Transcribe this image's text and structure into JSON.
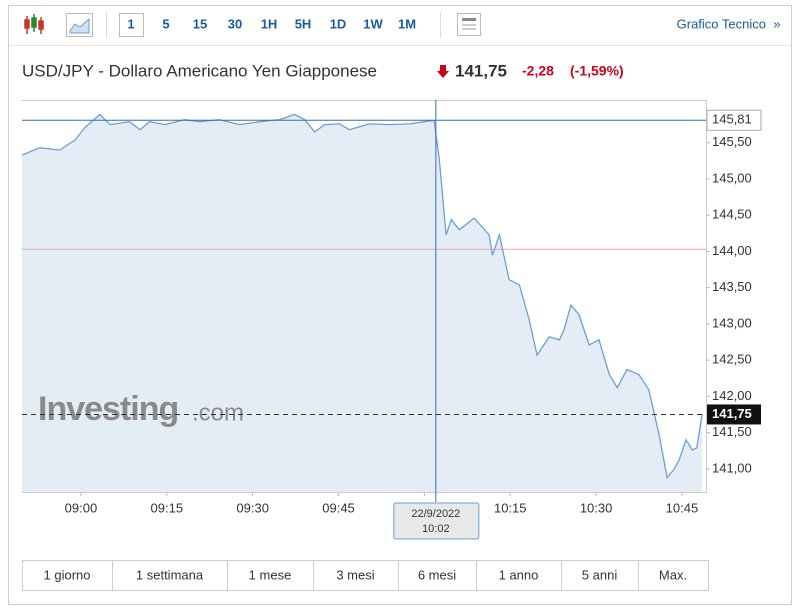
{
  "toolbar": {
    "intervals": [
      "1",
      "5",
      "15",
      "30",
      "1H",
      "5H",
      "1D",
      "1W",
      "1M"
    ],
    "link": "Grafico Tecnico",
    "link_arrow": "»"
  },
  "header": {
    "title": "USD/JPY - Dollaro Americano Yen Giapponese",
    "price": "141,75",
    "change": "-2,28",
    "change_percent": "(-1,59%)"
  },
  "watermark": {
    "brand": "Investing",
    "suffix": ".com"
  },
  "chart_data": {
    "type": "line",
    "series": [
      {
        "name": "USD/JPY",
        "color": "#6d9fd3",
        "x": [
          529.7,
          532.8,
          536.3,
          539.0,
          540.7,
          543.3,
          545.1,
          548.5,
          550.3,
          552.0,
          554.7,
          558.1,
          560.8,
          564.2,
          567.7,
          571.2,
          574.7,
          577.3,
          579.1,
          580.8,
          582.6,
          585.2,
          586.9,
          590.4,
          593.9,
          597.4,
          600.0,
          601.7,
          602.6,
          603.8,
          604.7,
          606.1,
          608.7,
          611.3,
          611.9,
          613.1,
          614.8,
          616.6,
          618.3,
          619.7,
          621.8,
          623.6,
          624.4,
          625.6,
          627.0,
          628.8,
          630.5,
          632.3,
          633.7,
          635.4,
          637.5,
          639.2,
          641.0,
          642.4,
          643.6,
          644.5,
          645.7,
          646.8,
          647.6,
          648.5
        ],
        "values": [
          145.33,
          145.43,
          145.4,
          145.54,
          145.71,
          145.89,
          145.75,
          145.79,
          145.68,
          145.79,
          145.75,
          145.82,
          145.79,
          145.82,
          145.75,
          145.79,
          145.82,
          145.89,
          145.82,
          145.65,
          145.75,
          145.76,
          145.68,
          145.76,
          145.75,
          145.76,
          145.79,
          145.81,
          145.27,
          144.23,
          144.44,
          144.3,
          144.46,
          144.23,
          143.95,
          144.23,
          143.61,
          143.54,
          143.06,
          142.57,
          142.82,
          142.78,
          142.92,
          143.26,
          143.13,
          142.71,
          142.78,
          142.3,
          142.12,
          142.37,
          142.3,
          142.09,
          141.47,
          140.88,
          140.99,
          141.12,
          141.4,
          141.26,
          141.29,
          141.75
        ]
      }
    ],
    "fill": "#e4edf6",
    "xlim": [
      529.7,
      649.2
    ],
    "xticks": [
      {
        "value": 540,
        "label": "09:00"
      },
      {
        "value": 555,
        "label": "09:15"
      },
      {
        "value": 570,
        "label": "09:30"
      },
      {
        "value": 585,
        "label": "09:45"
      },
      {
        "value": 600,
        "label": "10:00"
      },
      {
        "value": 615,
        "label": "10:15"
      },
      {
        "value": 630,
        "label": "10:30"
      },
      {
        "value": 645,
        "label": "10:45"
      }
    ],
    "ylim": [
      140.68,
      146.09
    ],
    "yticks": [
      {
        "value": 141,
        "label": "141,00"
      },
      {
        "value": 141.5,
        "label": "141,50"
      },
      {
        "value": 142,
        "label": "142,00"
      },
      {
        "value": 142.5,
        "label": "142,50"
      },
      {
        "value": 143,
        "label": "143,00"
      },
      {
        "value": 143.5,
        "label": "143,50"
      },
      {
        "value": 144,
        "label": "144,00"
      },
      {
        "value": 144.5,
        "label": "144,50"
      },
      {
        "value": 145,
        "label": "145,00"
      },
      {
        "value": 145.5,
        "label": "145,50"
      }
    ],
    "reference_line": {
      "value": 144.03,
      "color": "#f0a8a8"
    },
    "crosshair": {
      "x": 602,
      "value": 145.81,
      "label": "145,81",
      "date_label": "22/9/2022",
      "time_label": "10:02",
      "color": "#3a6fb0"
    },
    "last": {
      "value": 141.75,
      "label": "141,75"
    }
  },
  "ranges": [
    "1 giorno",
    "1 settimana",
    "1 mese",
    "3 mesi",
    "6 mesi",
    "1 anno",
    "5 anni",
    "Max."
  ]
}
